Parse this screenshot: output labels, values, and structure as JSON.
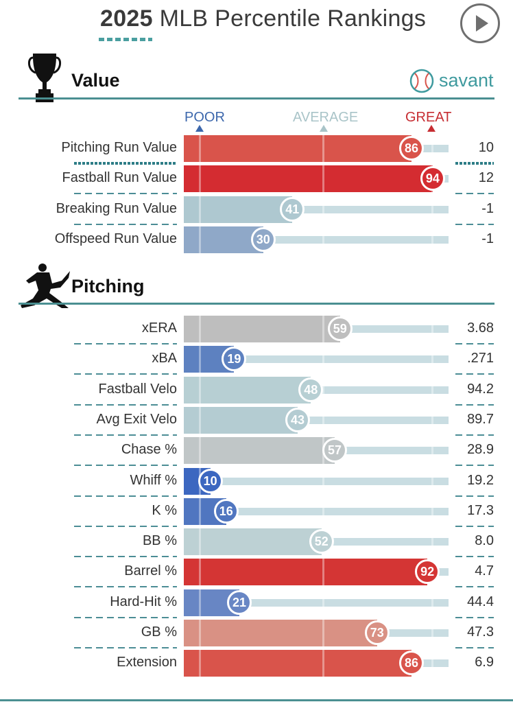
{
  "header": {
    "year": "2025",
    "title": "MLB Percentile Rankings",
    "play_icon": "play-icon"
  },
  "brand": {
    "name": "savant",
    "logo_icon": "baseball-icon",
    "color": "#3f9a9e"
  },
  "scale": {
    "poor": "POOR",
    "average": "AVERAGE",
    "great": "GREAT",
    "poor_color": "#3c67ac",
    "average_color": "#a9c4c8",
    "great_color": "#c62d32"
  },
  "chart_data": [
    {
      "type": "bar",
      "title": "Value",
      "icon": "trophy-icon",
      "xlim": [
        0,
        100
      ],
      "rows": [
        {
          "label": "Pitching Run Value",
          "percentile": 86,
          "value": "10",
          "color": "#d9544b"
        },
        {
          "label": "Fastball Run Value",
          "percentile": 94,
          "value": "12",
          "color": "#d42c31"
        },
        {
          "label": "Breaking Run Value",
          "percentile": 41,
          "value": "-1",
          "color": "#aec8d0"
        },
        {
          "label": "Offspeed Run Value",
          "percentile": 30,
          "value": "-1",
          "color": "#8fa8c8"
        }
      ]
    },
    {
      "type": "bar",
      "title": "Pitching",
      "icon": "pitcher-icon",
      "xlim": [
        0,
        100
      ],
      "rows": [
        {
          "label": "xERA",
          "percentile": 59,
          "value": "3.68",
          "color": "#bebebe"
        },
        {
          "label": "xBA",
          "percentile": 19,
          "value": ".271",
          "color": "#5d81c0"
        },
        {
          "label": "Fastball Velo",
          "percentile": 48,
          "value": "94.2",
          "color": "#b7cfd3"
        },
        {
          "label": "Avg Exit Velo",
          "percentile": 43,
          "value": "89.7",
          "color": "#b4ccd2"
        },
        {
          "label": "Chase %",
          "percentile": 57,
          "value": "28.9",
          "color": "#c0c6c7"
        },
        {
          "label": "Whiff %",
          "percentile": 10,
          "value": "19.2",
          "color": "#3c67c0"
        },
        {
          "label": "K %",
          "percentile": 16,
          "value": "17.3",
          "color": "#5076c0"
        },
        {
          "label": "BB %",
          "percentile": 52,
          "value": "8.0",
          "color": "#bdd1d4"
        },
        {
          "label": "Barrel %",
          "percentile": 92,
          "value": "4.7",
          "color": "#d43534"
        },
        {
          "label": "Hard-Hit %",
          "percentile": 21,
          "value": "44.4",
          "color": "#6886c4"
        },
        {
          "label": "GB %",
          "percentile": 73,
          "value": "47.3",
          "color": "#d99184"
        },
        {
          "label": "Extension",
          "percentile": 86,
          "value": "6.9",
          "color": "#d9544b"
        }
      ]
    }
  ]
}
